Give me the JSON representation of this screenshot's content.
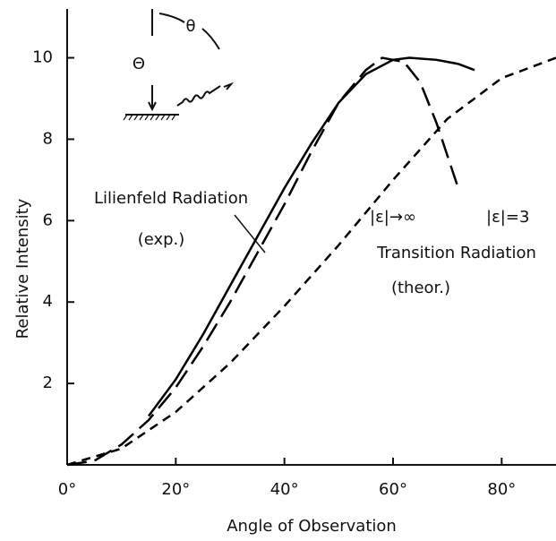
{
  "chart_data": {
    "type": "line",
    "xlabel": "Angle of Observation",
    "ylabel": "Relative Intensity",
    "xlim": [
      0,
      90
    ],
    "ylim": [
      0,
      11.2
    ],
    "xticks": [
      {
        "value": 0,
        "label": "0°"
      },
      {
        "value": 20,
        "label": "20°"
      },
      {
        "value": 40,
        "label": "40°"
      },
      {
        "value": 60,
        "label": "60°"
      },
      {
        "value": 80,
        "label": "80°"
      }
    ],
    "yticks": [
      2,
      4,
      6,
      8,
      10
    ],
    "series": [
      {
        "color": "#000000",
        "dash": "solid",
        "x": [
          15,
          20,
          25,
          30,
          35,
          40,
          45,
          50,
          55,
          60,
          63,
          68,
          72,
          75
        ],
        "values": [
          1.2,
          2.1,
          3.2,
          4.4,
          5.6,
          6.8,
          7.9,
          8.9,
          9.6,
          9.95,
          10,
          9.95,
          9.85,
          9.7
        ]
      },
      {
        "color": "#000000",
        "dash": "long",
        "x": [
          0,
          5,
          10,
          15,
          20,
          25,
          30,
          35,
          40,
          45,
          50,
          55,
          58,
          62,
          65,
          68,
          70,
          72
        ],
        "values": [
          0,
          0.1,
          0.5,
          1.1,
          1.9,
          2.9,
          4.0,
          5.2,
          6.4,
          7.7,
          8.9,
          9.7,
          10,
          9.9,
          9.4,
          8.4,
          7.6,
          6.8
        ]
      },
      {
        "color": "#000000",
        "dash": "short",
        "x": [
          0,
          10,
          20,
          30,
          40,
          50,
          60,
          70,
          80,
          90
        ],
        "values": [
          0,
          0.4,
          1.3,
          2.5,
          3.9,
          5.4,
          7.0,
          8.5,
          9.5,
          10
        ]
      }
    ],
    "annotations": [
      "Lilienfeld Radiation",
      "(exp.)",
      "|ε|→∞",
      "|ε|=3",
      "Transition Radiation",
      "(theor.)",
      "θ",
      "Θ"
    ]
  }
}
